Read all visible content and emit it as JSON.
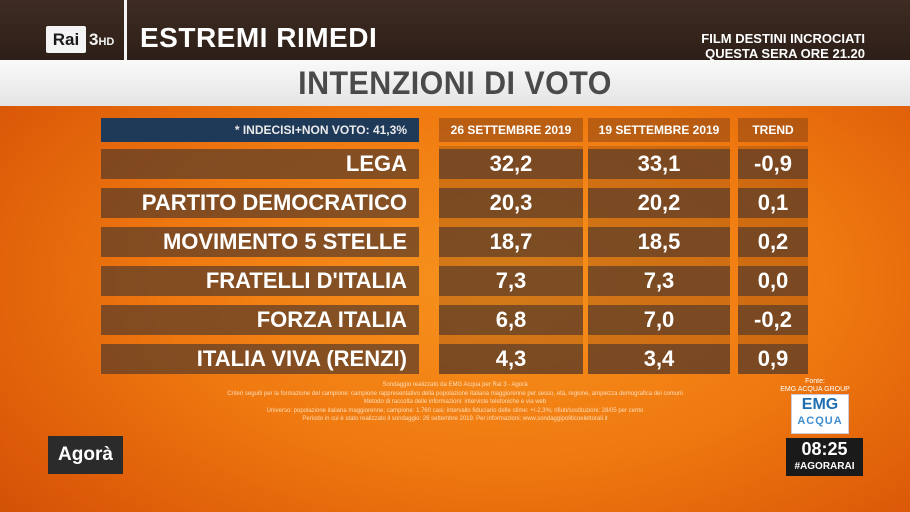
{
  "header": {
    "channel_logo": "Rai",
    "channel_number": "3",
    "channel_hd": "HD",
    "program_title": "ESTREMI RIMEDI",
    "promo_line1": "FILM DESTINI INCROCIATI",
    "promo_line2": "QUESTA SERA ORE 21.20"
  },
  "title": "INTENZIONI DI VOTO",
  "table": {
    "note": "* INDECISI+NON VOTO: 41,3%",
    "columns": [
      "26 SETTEMBRE 2019",
      "19 SETTEMBRE 2019",
      "TREND"
    ],
    "rows": [
      {
        "party": "LEGA",
        "v1": "32,2",
        "v2": "33,1",
        "trend": "-0,9"
      },
      {
        "party": "PARTITO DEMOCRATICO",
        "v1": "20,3",
        "v2": "20,2",
        "trend": "0,1"
      },
      {
        "party": "MOVIMENTO 5 STELLE",
        "v1": "18,7",
        "v2": "18,5",
        "trend": "0,2"
      },
      {
        "party": "FRATELLI D'ITALIA",
        "v1": "7,3",
        "v2": "7,3",
        "trend": "0,0"
      },
      {
        "party": "FORZA ITALIA",
        "v1": "6,8",
        "v2": "7,0",
        "trend": "-0,2"
      },
      {
        "party": "ITALIA VIVA (RENZI)",
        "v1": "4,3",
        "v2": "3,4",
        "trend": "0,9"
      }
    ]
  },
  "fine_print": [
    "Sondaggio realizzato da EMG Acqua per Rai 3 - Agorà",
    "Criteri seguiti per la formazione del campione: campione rappresentativo della popolazione italiana maggiorenne per sesso, età, regione, ampiezza demografica dei comuni",
    "Metodo di raccolta delle informazioni: interviste telefoniche e via web",
    "Universo: popolazione italiana maggiorenne; campione: 1.760 casi; intervallo fiduciario delle stime: +/-2,3%; rifiuti/sostituzioni: 28/05 per cento",
    "Periodo in cui è stato realizzato il sondaggio: 26 settembre 2019. Per informazioni: www.sondaggipoliticoelettorali.it"
  ],
  "source": {
    "label": "Fonte:",
    "name": "EMG ACQUA GROUP",
    "logo_line1": "EMG",
    "logo_line2": "ACQUA"
  },
  "program_logo": "Agorà",
  "clock": {
    "time": "08:25",
    "hashtag": "#AGORARAI"
  },
  "colors": {
    "background": "#f07a10",
    "topbar": "#2d1f18",
    "note_bg": "#1f3a58",
    "row_bg": "#5a3c28"
  }
}
